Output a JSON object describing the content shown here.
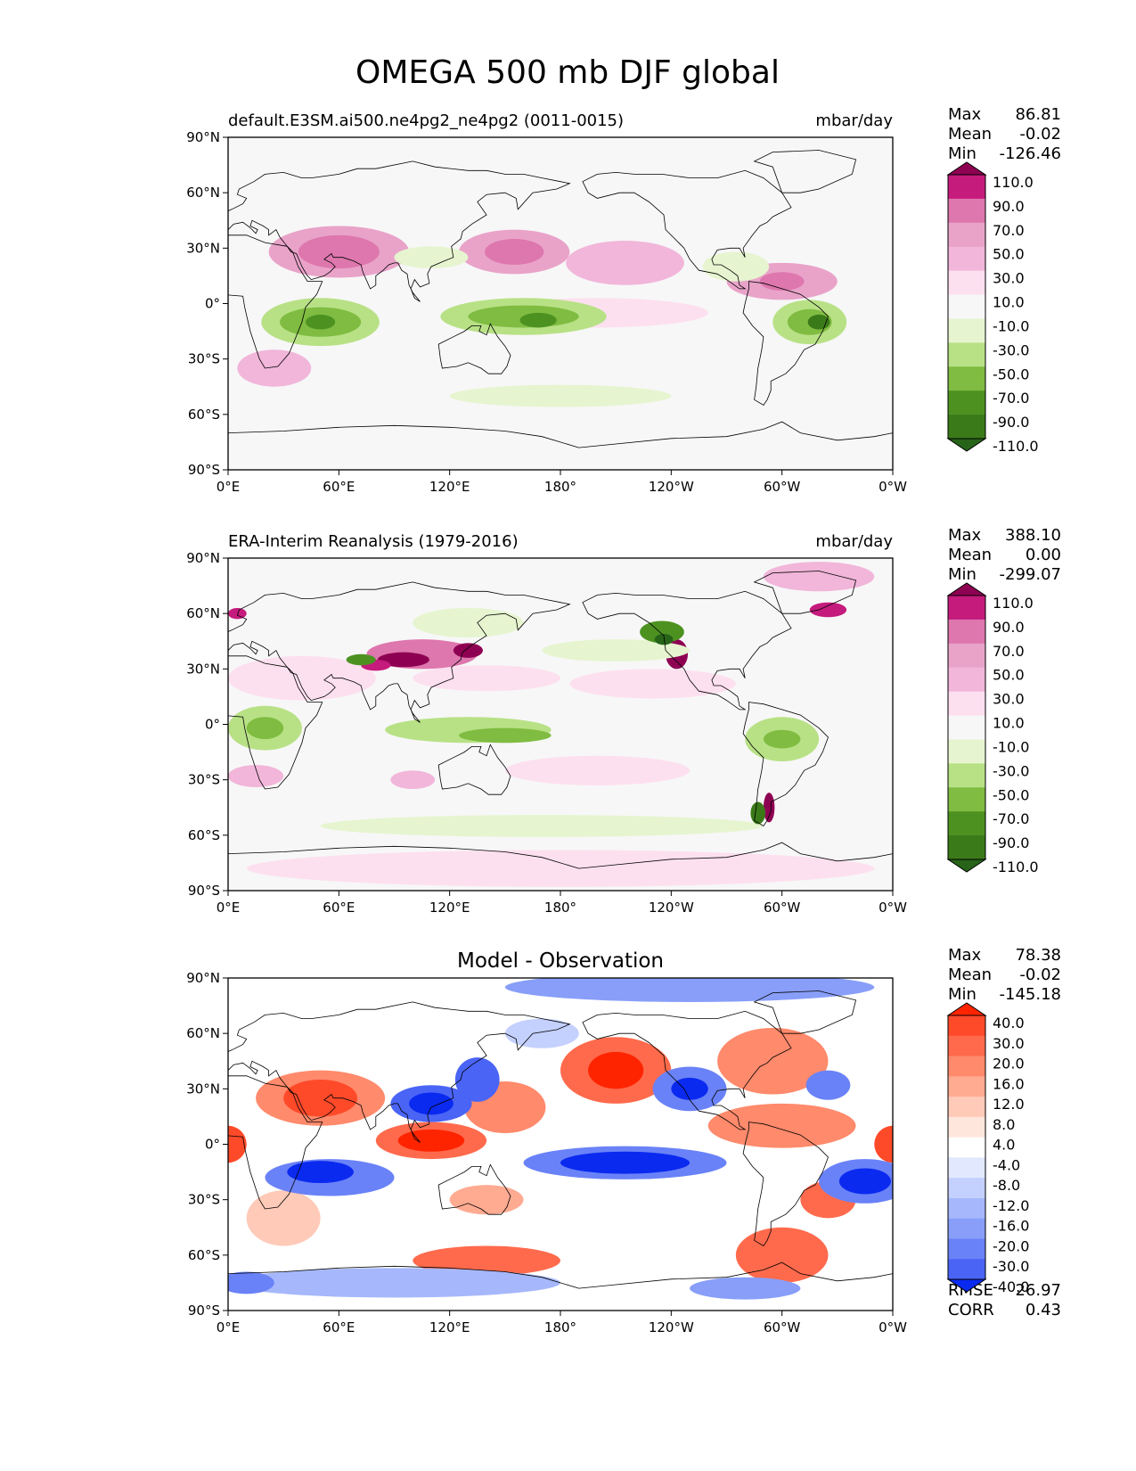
{
  "page_title": "OMEGA 500 mb DJF global",
  "chart_data": [
    {
      "type": "heatmap",
      "panel_id": "test",
      "title_left": "default.E3SM.ai500.ne4pg2_ne4pg2 (0011-0015)",
      "title_right": "mbar/day",
      "title_center": "",
      "stats": [
        [
          "Max",
          "86.81"
        ],
        [
          "Mean",
          "-0.02"
        ],
        [
          "Min",
          "-126.46"
        ]
      ],
      "extra_stats": [],
      "lat_ticks": [
        "90°N",
        "60°N",
        "30°N",
        "0°",
        "30°S",
        "60°S",
        "90°S"
      ],
      "lon_ticks": [
        "0°E",
        "60°E",
        "120°E",
        "180°",
        "120°W",
        "60°W",
        "0°W"
      ],
      "colorbar_levels": [
        "110.0",
        "90.0",
        "70.0",
        "50.0",
        "30.0",
        "10.0",
        "-10.0",
        "-30.0",
        "-50.0",
        "-70.0",
        "-90.0",
        "-110.0"
      ],
      "colorbar_colors": [
        "#8e0152",
        "#c51b7d",
        "#de77ae",
        "#e9a3c9",
        "#f1b6da",
        "#fde0ef",
        "#f7f7f7",
        "#e6f5d0",
        "#b8e186",
        "#7fbc41",
        "#4d9221",
        "#3b7a19",
        "#276419"
      ],
      "features": [
        {
          "lon": 60,
          "lat": 28,
          "rx": 38,
          "ry": 14,
          "level": 3
        },
        {
          "lon": 60,
          "lat": 28,
          "rx": 22,
          "ry": 9,
          "level": 2
        },
        {
          "lon": 155,
          "lat": 28,
          "rx": 30,
          "ry": 12,
          "level": 3
        },
        {
          "lon": 155,
          "lat": 28,
          "rx": 16,
          "ry": 7,
          "level": 2
        },
        {
          "lon": 215,
          "lat": 22,
          "rx": 32,
          "ry": 12,
          "level": 4
        },
        {
          "lon": 300,
          "lat": 12,
          "rx": 30,
          "ry": 10,
          "level": 3
        },
        {
          "lon": 300,
          "lat": 12,
          "rx": 12,
          "ry": 5,
          "level": 2
        },
        {
          "lon": 25,
          "lat": -35,
          "rx": 20,
          "ry": 10,
          "level": 4
        },
        {
          "lon": 200,
          "lat": -5,
          "rx": 60,
          "ry": 8,
          "level": 5
        },
        {
          "lon": 50,
          "lat": -10,
          "rx": 32,
          "ry": 13,
          "level": 8
        },
        {
          "lon": 50,
          "lat": -10,
          "rx": 22,
          "ry": 8,
          "level": 9
        },
        {
          "lon": 50,
          "lat": -10,
          "rx": 8,
          "ry": 4,
          "level": 10
        },
        {
          "lon": 160,
          "lat": -7,
          "rx": 45,
          "ry": 10,
          "level": 8
        },
        {
          "lon": 160,
          "lat": -7,
          "rx": 30,
          "ry": 6,
          "level": 9
        },
        {
          "lon": 168,
          "lat": -9,
          "rx": 10,
          "ry": 4,
          "level": 10
        },
        {
          "lon": 315,
          "lat": -10,
          "rx": 20,
          "ry": 12,
          "level": 8
        },
        {
          "lon": 315,
          "lat": -10,
          "rx": 12,
          "ry": 7,
          "level": 9
        },
        {
          "lon": 320,
          "lat": -10,
          "rx": 6,
          "ry": 4,
          "level": 11
        },
        {
          "lon": 110,
          "lat": 25,
          "rx": 20,
          "ry": 6,
          "level": 7
        },
        {
          "lon": 275,
          "lat": 20,
          "rx": 18,
          "ry": 8,
          "level": 7
        },
        {
          "lon": 180,
          "lat": -50,
          "rx": 60,
          "ry": 6,
          "level": 7
        }
      ]
    },
    {
      "type": "heatmap",
      "panel_id": "reference",
      "title_left": "ERA-Interim Reanalysis (1979-2016)",
      "title_right": "mbar/day",
      "title_center": "",
      "stats": [
        [
          "Max",
          "388.10"
        ],
        [
          "Mean",
          "0.00"
        ],
        [
          "Min",
          "-299.07"
        ]
      ],
      "extra_stats": [],
      "lat_ticks": [
        "90°N",
        "60°N",
        "30°N",
        "0°",
        "30°S",
        "60°S",
        "90°S"
      ],
      "lon_ticks": [
        "0°E",
        "60°E",
        "120°E",
        "180°",
        "120°W",
        "60°W",
        "0°W"
      ],
      "colorbar_levels": [
        "110.0",
        "90.0",
        "70.0",
        "50.0",
        "30.0",
        "10.0",
        "-10.0",
        "-30.0",
        "-50.0",
        "-70.0",
        "-90.0",
        "-110.0"
      ],
      "colorbar_colors": [
        "#8e0152",
        "#c51b7d",
        "#de77ae",
        "#e9a3c9",
        "#f1b6da",
        "#fde0ef",
        "#f7f7f7",
        "#e6f5d0",
        "#b8e186",
        "#7fbc41",
        "#4d9221",
        "#3b7a19",
        "#276419"
      ],
      "features": [
        {
          "lon": 40,
          "lat": 25,
          "rx": 40,
          "ry": 12,
          "level": 5
        },
        {
          "lon": 140,
          "lat": 25,
          "rx": 40,
          "ry": 7,
          "level": 5
        },
        {
          "lon": 230,
          "lat": 22,
          "rx": 45,
          "ry": 8,
          "level": 5
        },
        {
          "lon": 200,
          "lat": -25,
          "rx": 50,
          "ry": 8,
          "level": 5
        },
        {
          "lon": 15,
          "lat": -28,
          "rx": 15,
          "ry": 6,
          "level": 4
        },
        {
          "lon": 100,
          "lat": -30,
          "rx": 12,
          "ry": 5,
          "level": 4
        },
        {
          "lon": 180,
          "lat": -78,
          "rx": 170,
          "ry": 10,
          "level": 5
        },
        {
          "lon": 320,
          "lat": 80,
          "rx": 30,
          "ry": 8,
          "level": 4
        },
        {
          "lon": 105,
          "lat": 38,
          "rx": 30,
          "ry": 8,
          "level": 2
        },
        {
          "lon": 95,
          "lat": 35,
          "rx": 14,
          "ry": 4,
          "level": 0
        },
        {
          "lon": 130,
          "lat": 40,
          "rx": 8,
          "ry": 4,
          "level": 0
        },
        {
          "lon": 80,
          "lat": 32,
          "rx": 8,
          "ry": 3,
          "level": 1
        },
        {
          "lon": 243,
          "lat": 38,
          "rx": 6,
          "ry": 8,
          "level": 0
        },
        {
          "lon": 293,
          "lat": -45,
          "rx": 3,
          "ry": 8,
          "level": 0
        },
        {
          "lon": 325,
          "lat": 62,
          "rx": 10,
          "ry": 4,
          "level": 1
        },
        {
          "lon": 5,
          "lat": 60,
          "rx": 5,
          "ry": 3,
          "level": 1
        },
        {
          "lon": 130,
          "lat": 55,
          "rx": 30,
          "ry": 8,
          "level": 7
        },
        {
          "lon": 210,
          "lat": 40,
          "rx": 40,
          "ry": 6,
          "level": 7
        },
        {
          "lon": 170,
          "lat": -55,
          "rx": 120,
          "ry": 6,
          "level": 7
        },
        {
          "lon": 20,
          "lat": -2,
          "rx": 20,
          "ry": 12,
          "level": 8
        },
        {
          "lon": 20,
          "lat": -2,
          "rx": 10,
          "ry": 6,
          "level": 9
        },
        {
          "lon": 130,
          "lat": -3,
          "rx": 45,
          "ry": 7,
          "level": 8
        },
        {
          "lon": 150,
          "lat": -6,
          "rx": 25,
          "ry": 4,
          "level": 9
        },
        {
          "lon": 300,
          "lat": -8,
          "rx": 20,
          "ry": 12,
          "level": 8
        },
        {
          "lon": 300,
          "lat": -8,
          "rx": 10,
          "ry": 5,
          "level": 9
        },
        {
          "lon": 235,
          "lat": 50,
          "rx": 12,
          "ry": 6,
          "level": 10
        },
        {
          "lon": 236,
          "lat": 46,
          "rx": 5,
          "ry": 3,
          "level": 12
        },
        {
          "lon": 72,
          "lat": 35,
          "rx": 8,
          "ry": 3,
          "level": 10
        },
        {
          "lon": 287,
          "lat": -48,
          "rx": 4,
          "ry": 6,
          "level": 11
        }
      ]
    },
    {
      "type": "heatmap",
      "panel_id": "difference",
      "title_left": "",
      "title_right": "",
      "title_center": "Model - Observation",
      "stats": [
        [
          "Max",
          "78.38"
        ],
        [
          "Mean",
          "-0.02"
        ],
        [
          "Min",
          "-145.18"
        ]
      ],
      "extra_stats": [
        [
          "RMSE",
          "26.97"
        ],
        [
          "CORR",
          "0.43"
        ]
      ],
      "lat_ticks": [
        "90°N",
        "60°N",
        "30°N",
        "0°",
        "30°S",
        "60°S",
        "90°S"
      ],
      "lon_ticks": [
        "0°E",
        "60°E",
        "120°E",
        "180°",
        "120°W",
        "60°W",
        "0°W"
      ],
      "colorbar_levels": [
        "40.0",
        "30.0",
        "20.0",
        "16.0",
        "12.0",
        "8.0",
        "4.0",
        "-4.0",
        "-8.0",
        "-12.0",
        "-16.0",
        "-20.0",
        "-30.0",
        "-40.0"
      ],
      "colorbar_colors": [
        "#ff2400",
        "#ff4a2a",
        "#ff6a4c",
        "#ff8a6c",
        "#ffab92",
        "#ffcab8",
        "#ffe6dc",
        "#ffffff",
        "#e2e8fe",
        "#c4d0fd",
        "#a6b8fb",
        "#889ef9",
        "#6a82f7",
        "#4a64f5",
        "#0a2af0"
      ],
      "features": [
        {
          "lon": 50,
          "lat": 25,
          "rx": 35,
          "ry": 15,
          "level": 3
        },
        {
          "lon": 50,
          "lat": 25,
          "rx": 20,
          "ry": 10,
          "level": 1
        },
        {
          "lon": 150,
          "lat": 20,
          "rx": 22,
          "ry": 14,
          "level": 3
        },
        {
          "lon": 210,
          "lat": 40,
          "rx": 30,
          "ry": 18,
          "level": 2
        },
        {
          "lon": 210,
          "lat": 40,
          "rx": 15,
          "ry": 10,
          "level": 0
        },
        {
          "lon": 295,
          "lat": 45,
          "rx": 30,
          "ry": 18,
          "level": 3
        },
        {
          "lon": 300,
          "lat": 10,
          "rx": 40,
          "ry": 12,
          "level": 3
        },
        {
          "lon": 0,
          "lat": 0,
          "rx": 10,
          "ry": 10,
          "level": 1
        },
        {
          "lon": 360,
          "lat": 0,
          "rx": 10,
          "ry": 10,
          "level": 1
        },
        {
          "lon": 110,
          "lat": 2,
          "rx": 30,
          "ry": 10,
          "level": 2
        },
        {
          "lon": 110,
          "lat": 2,
          "rx": 18,
          "ry": 6,
          "level": 0
        },
        {
          "lon": 140,
          "lat": -30,
          "rx": 20,
          "ry": 8,
          "level": 4
        },
        {
          "lon": 140,
          "lat": -63,
          "rx": 40,
          "ry": 8,
          "level": 2
        },
        {
          "lon": 300,
          "lat": -60,
          "rx": 25,
          "ry": 15,
          "level": 2
        },
        {
          "lon": 325,
          "lat": -30,
          "rx": 15,
          "ry": 10,
          "level": 2
        },
        {
          "lon": 30,
          "lat": -40,
          "rx": 20,
          "ry": 15,
          "level": 5
        },
        {
          "lon": 110,
          "lat": 22,
          "rx": 22,
          "ry": 10,
          "level": 13
        },
        {
          "lon": 110,
          "lat": 22,
          "rx": 12,
          "ry": 6,
          "level": 14
        },
        {
          "lon": 55,
          "lat": -18,
          "rx": 35,
          "ry": 10,
          "level": 12
        },
        {
          "lon": 50,
          "lat": -15,
          "rx": 18,
          "ry": 6,
          "level": 14
        },
        {
          "lon": 215,
          "lat": -10,
          "rx": 55,
          "ry": 9,
          "level": 12
        },
        {
          "lon": 215,
          "lat": -10,
          "rx": 35,
          "ry": 6,
          "level": 14
        },
        {
          "lon": 250,
          "lat": 30,
          "rx": 20,
          "ry": 12,
          "level": 12
        },
        {
          "lon": 250,
          "lat": 30,
          "rx": 10,
          "ry": 6,
          "level": 14
        },
        {
          "lon": 345,
          "lat": -20,
          "rx": 25,
          "ry": 12,
          "level": 12
        },
        {
          "lon": 345,
          "lat": -20,
          "rx": 14,
          "ry": 7,
          "level": 14
        },
        {
          "lon": 135,
          "lat": 35,
          "rx": 12,
          "ry": 12,
          "level": 13
        },
        {
          "lon": 250,
          "lat": 85,
          "rx": 100,
          "ry": 8,
          "level": 11
        },
        {
          "lon": 325,
          "lat": 32,
          "rx": 12,
          "ry": 8,
          "level": 12
        },
        {
          "lon": 90,
          "lat": -75,
          "rx": 90,
          "ry": 8,
          "level": 10
        },
        {
          "lon": 10,
          "lat": -75,
          "rx": 15,
          "ry": 6,
          "level": 12
        },
        {
          "lon": 280,
          "lat": -78,
          "rx": 30,
          "ry": 6,
          "level": 11
        },
        {
          "lon": 170,
          "lat": 60,
          "rx": 20,
          "ry": 8,
          "level": 9
        }
      ]
    }
  ]
}
